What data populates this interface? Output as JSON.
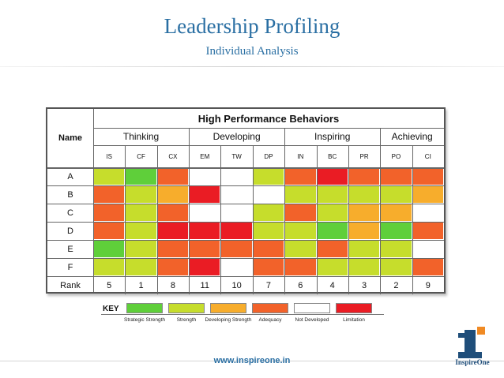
{
  "header": {
    "title": "Leadership Profiling",
    "subtitle": "Individual Analysis"
  },
  "matrix": {
    "heading": "High Performance Behaviors",
    "name_label": "Name",
    "rank_label": "Rank",
    "groups": [
      {
        "name": "Thinking",
        "span": 3
      },
      {
        "name": "Developing",
        "span": 3
      },
      {
        "name": "Inspiring",
        "span": 3
      },
      {
        "name": "Achieving",
        "span": 2
      }
    ],
    "columns": [
      "IS",
      "CF",
      "CX",
      "EM",
      "TW",
      "DP",
      "IN",
      "BC",
      "PR",
      "PO",
      "CI"
    ],
    "rows": [
      {
        "name": "A",
        "cells": [
          "strength",
          "strategic",
          "adequacy",
          "not",
          "not",
          "strength",
          "adequacy",
          "limitation",
          "adequacy",
          "adequacy",
          "adequacy"
        ]
      },
      {
        "name": "B",
        "cells": [
          "adequacy",
          "strength",
          "developing",
          "limitation",
          "not",
          "not",
          "strength",
          "strength",
          "strength",
          "strength",
          "developing"
        ]
      },
      {
        "name": "C",
        "cells": [
          "adequacy",
          "strength",
          "adequacy",
          "not",
          "not",
          "strength",
          "adequacy",
          "strength",
          "developing",
          "developing",
          "not"
        ]
      },
      {
        "name": "D",
        "cells": [
          "adequacy",
          "strength",
          "limitation",
          "limitation",
          "limitation",
          "strength",
          "strength",
          "strategic",
          "developing",
          "strategic",
          "adequacy"
        ]
      },
      {
        "name": "E",
        "cells": [
          "strategic",
          "strength",
          "adequacy",
          "adequacy",
          "adequacy",
          "adequacy",
          "strength",
          "adequacy",
          "strength",
          "strength",
          "not"
        ]
      },
      {
        "name": "F",
        "cells": [
          "strength",
          "strength",
          "adequacy",
          "limitation",
          "not",
          "adequacy",
          "adequacy",
          "strength",
          "strength",
          "strength",
          "adequacy"
        ]
      }
    ],
    "ranks": [
      "5",
      "1",
      "8",
      "11",
      "10",
      "7",
      "6",
      "4",
      "3",
      "2",
      "9"
    ]
  },
  "key": {
    "title": "KEY",
    "items": [
      {
        "id": "strategic",
        "label": "Strategic Strength",
        "color": "#5fcf3a"
      },
      {
        "id": "strength",
        "label": "Strength",
        "color": "#c6dd2c"
      },
      {
        "id": "developing",
        "label": "Developing Strength",
        "color": "#f7ad2c"
      },
      {
        "id": "adequacy",
        "label": "Adequacy",
        "color": "#f2622a"
      },
      {
        "id": "not",
        "label": "Not Developed",
        "color": "#ffffff"
      },
      {
        "id": "limitation",
        "label": "Limitation",
        "color": "#ea1c24"
      }
    ]
  },
  "footer": {
    "url": "www.inspireone.in",
    "logo_text": "InspireOne"
  }
}
